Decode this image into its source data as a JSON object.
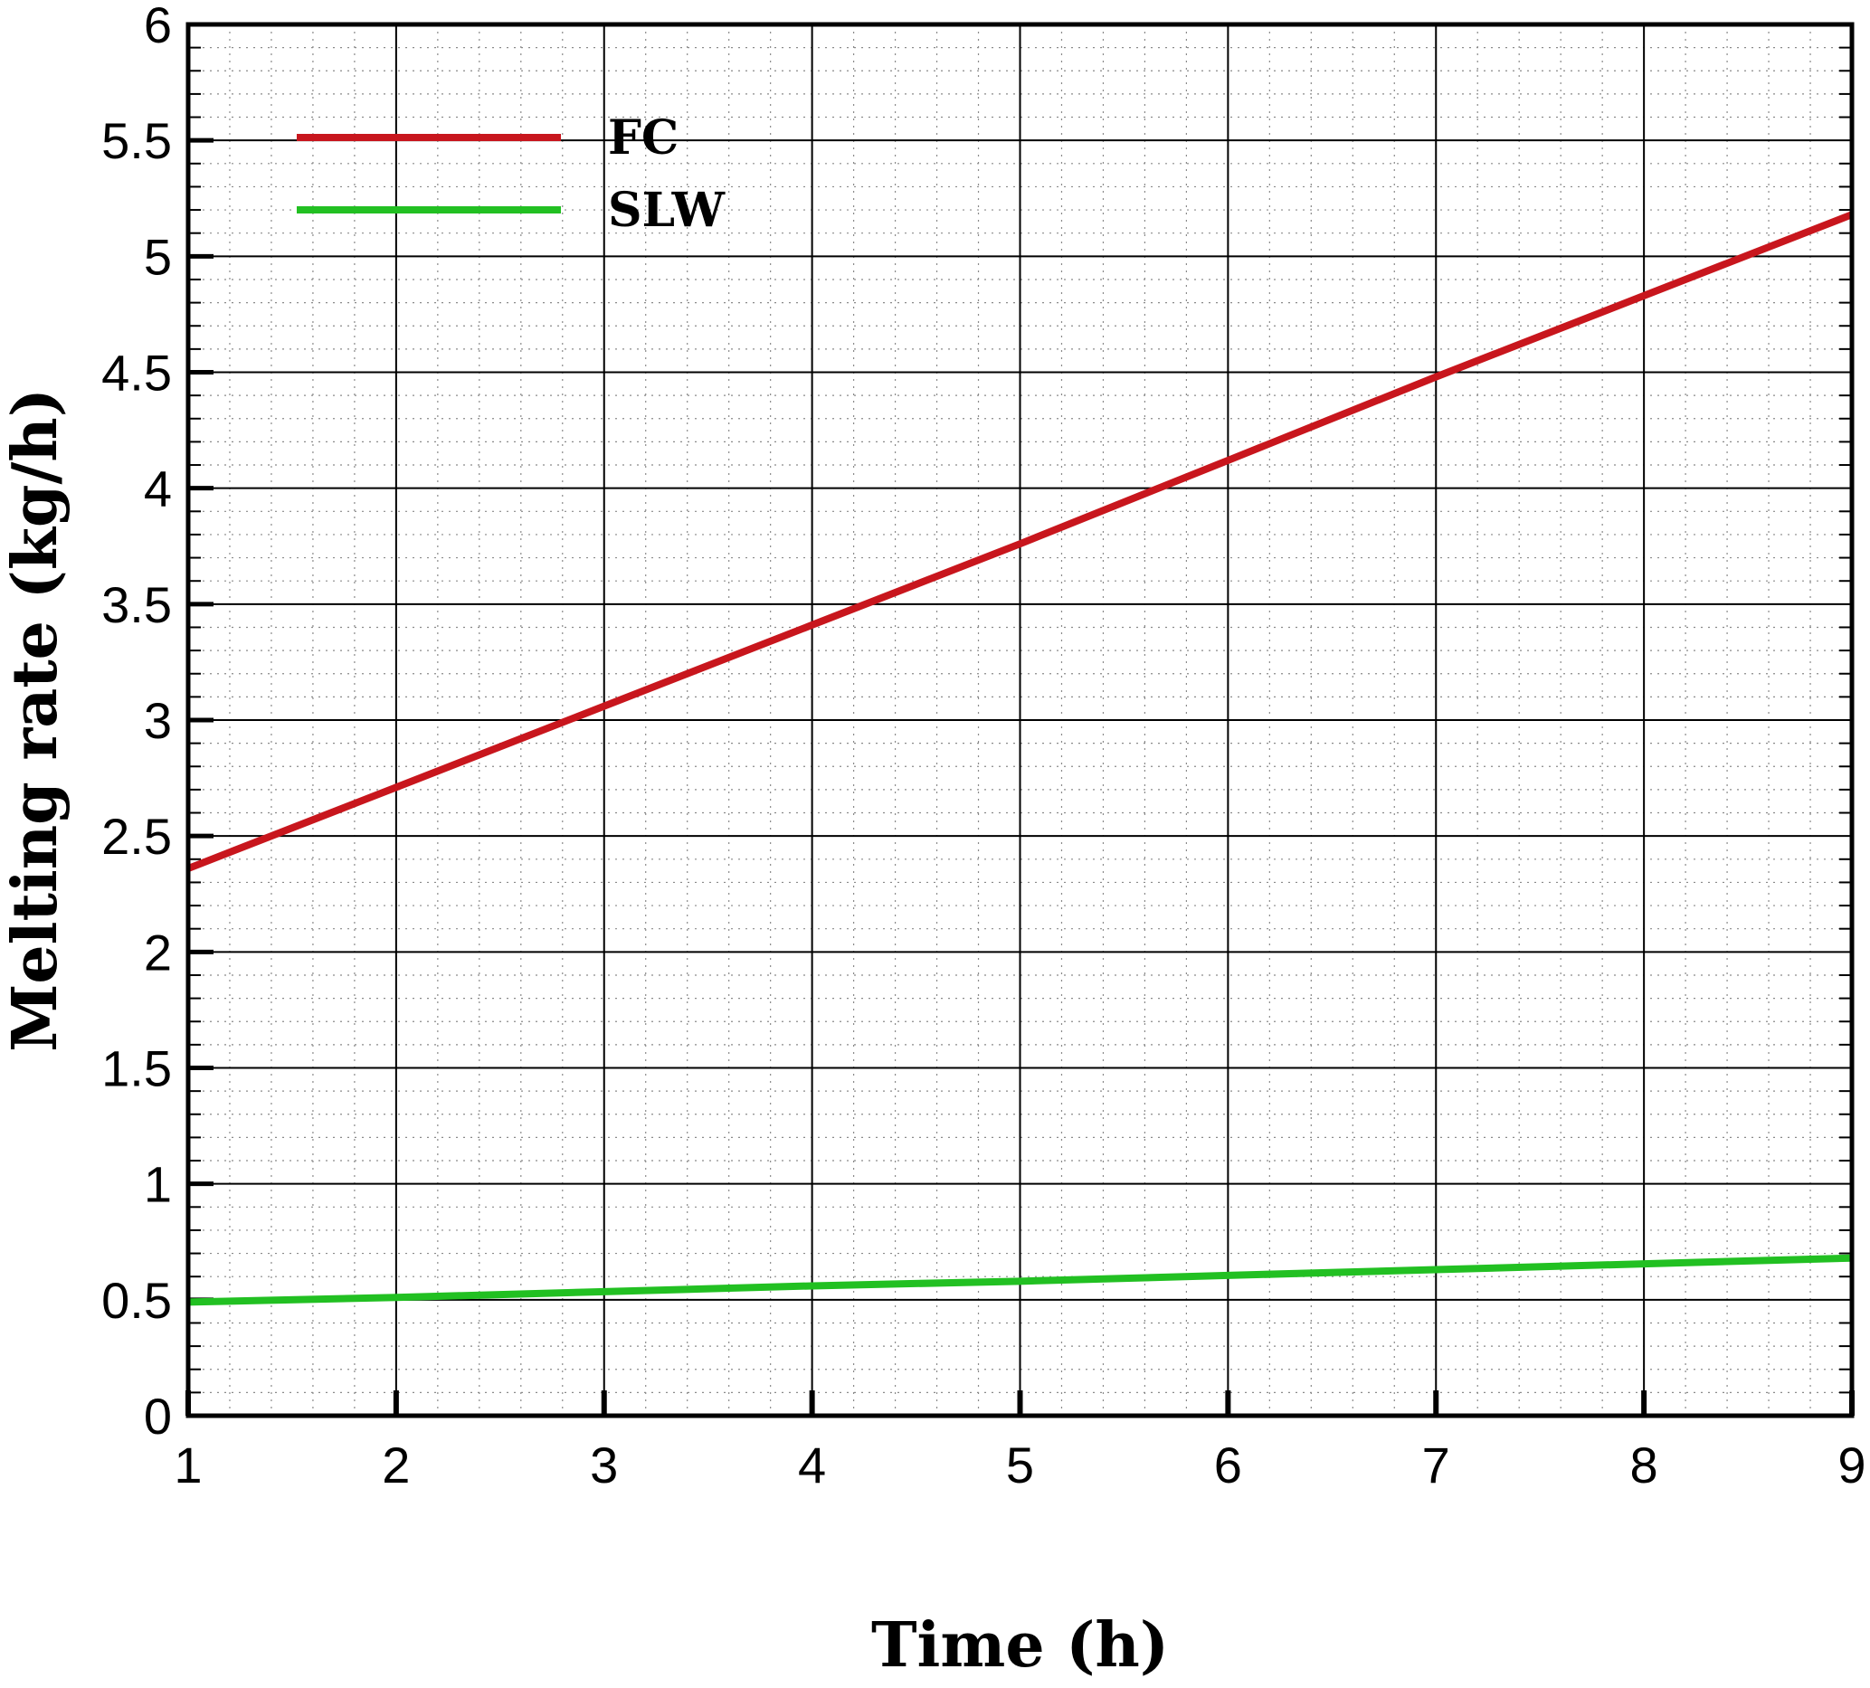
{
  "chart_data": {
    "type": "line",
    "title": "",
    "xlabel": "Time (h)",
    "ylabel": "Melting rate (kg/h)",
    "xlim": [
      1,
      9
    ],
    "ylim": [
      0,
      6
    ],
    "x_ticks": [
      1,
      2,
      3,
      4,
      5,
      6,
      7,
      8,
      9
    ],
    "y_ticks": [
      0,
      0.5,
      1,
      1.5,
      2,
      2.5,
      3,
      3.5,
      4,
      4.5,
      5,
      5.5,
      6
    ],
    "x_tick_labels": [
      "1",
      "2",
      "3",
      "4",
      "5",
      "6",
      "7",
      "8",
      "9"
    ],
    "y_tick_labels": [
      "0",
      "0.5",
      "1",
      "1.5",
      "2",
      "2.5",
      "3",
      "3.5",
      "4",
      "4.5",
      "5",
      "5.5",
      "6"
    ],
    "grid": {
      "major": true,
      "minor": true
    },
    "legend_position": "top-left",
    "series": [
      {
        "name": "FC",
        "color": "#c8161d",
        "x": [
          1,
          2,
          3,
          4,
          5,
          6,
          7,
          8,
          9
        ],
        "y": [
          2.36,
          2.71,
          3.06,
          3.41,
          3.76,
          4.12,
          4.48,
          4.83,
          5.18
        ]
      },
      {
        "name": "SLW",
        "color": "#22c022",
        "x": [
          1,
          2,
          3,
          4,
          5,
          6,
          7,
          8,
          9
        ],
        "y": [
          0.49,
          0.51,
          0.535,
          0.56,
          0.58,
          0.605,
          0.63,
          0.655,
          0.68
        ]
      }
    ]
  }
}
